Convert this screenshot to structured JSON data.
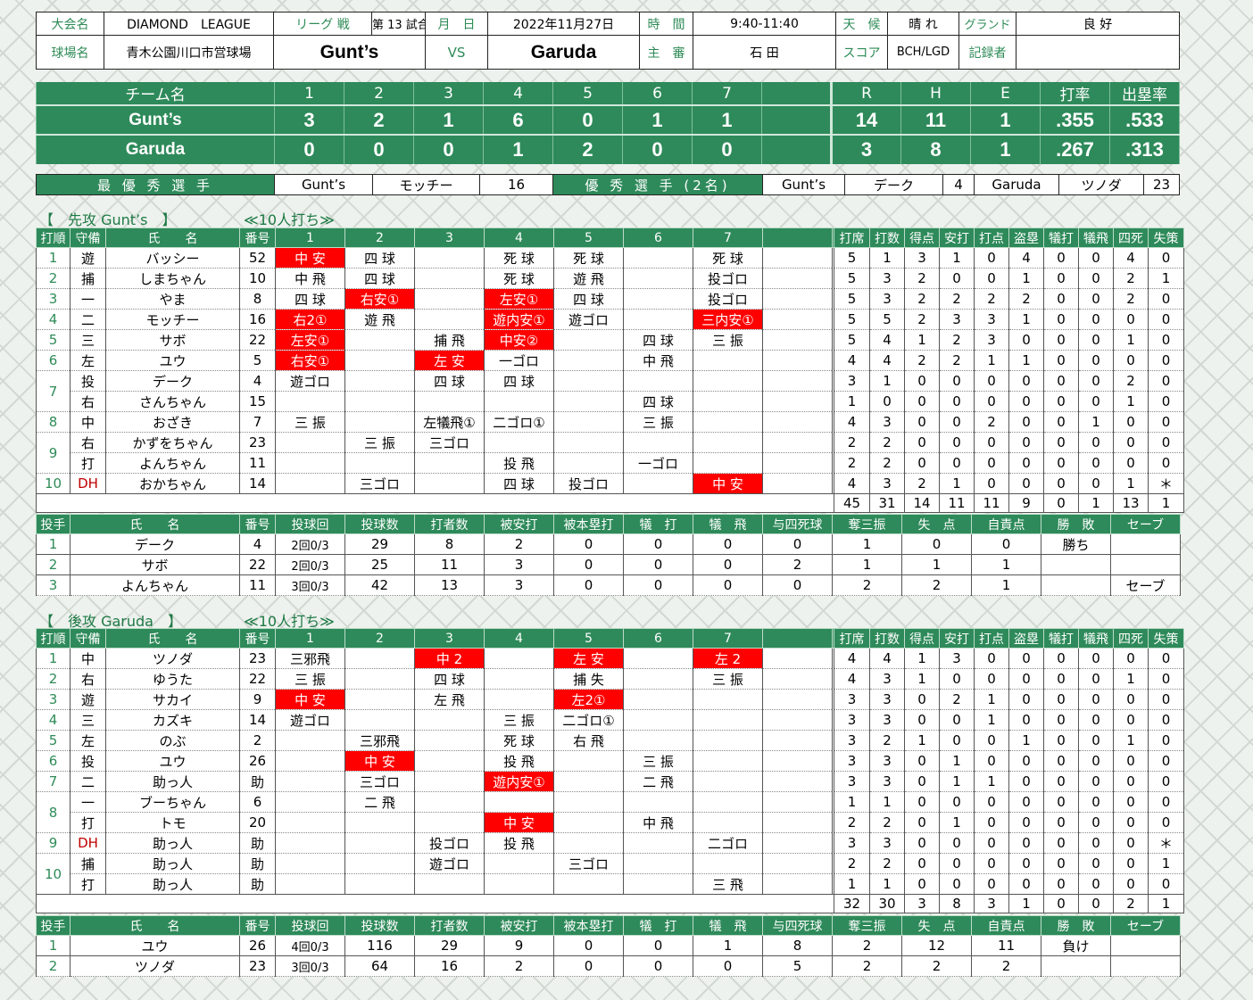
{
  "header": {
    "league_label": "大会名",
    "league_name": "DIAMOND　LEAGUE",
    "game_type": "リーグ 戦",
    "game_no": "第 13 試合",
    "date_label": "月　日",
    "date": "2022年11月27日",
    "time_label": "時　間",
    "time": "9:40-11:40",
    "weather_label": "天　候",
    "weather": "晴 れ",
    "ground_label": "グランド",
    "ground": "良 好",
    "venue_label": "球場名",
    "venue": "青木公園川口市営球場",
    "home_team": "Gunt’s",
    "vs": "VS",
    "away_team": "Garuda",
    "umpire_label": "主　審",
    "umpire": "石 田",
    "score_label": "スコア",
    "scorer": "BCH/LGD",
    "recorder_label": "記録者",
    "recorder": ""
  },
  "scoreboard": {
    "headers": [
      "チーム名",
      "1",
      "2",
      "3",
      "4",
      "5",
      "6",
      "7",
      "",
      "R",
      "H",
      "E",
      "打率",
      "出塁率"
    ],
    "rows": [
      [
        "Gunt’s",
        "3",
        "2",
        "1",
        "6",
        "0",
        "1",
        "1",
        "",
        "14",
        "11",
        "1",
        ".355",
        ".533"
      ],
      [
        "Garuda",
        "0",
        "0",
        "0",
        "1",
        "2",
        "0",
        "0",
        "",
        "3",
        "8",
        "1",
        ".267",
        ".313"
      ]
    ]
  },
  "awards": {
    "mvp_label": "最 優 秀 選 手",
    "mvp_team": "Gunt’s",
    "mvp_name": "モッチー",
    "mvp_no": "16",
    "excellent_label": "優 秀 選 手 (2名)",
    "ex1_team": "Gunt’s",
    "ex1_name": "デーク",
    "ex1_no": "4",
    "ex2_team": "Garuda",
    "ex2_name": "ツノダ",
    "ex2_no": "23"
  },
  "first": {
    "title": "【　先攻 Gunt’s　】",
    "note": "≪10人打ち≫",
    "headers": [
      "打順",
      "守備",
      "氏　　名",
      "番号",
      "1",
      "2",
      "3",
      "4",
      "5",
      "6",
      "7",
      "",
      "打席",
      "打数",
      "得点",
      "安打",
      "打点",
      "盗塁",
      "犠打",
      "犠飛",
      "四死",
      "失策"
    ],
    "rows": [
      {
        "order": "1",
        "pos": "遊",
        "name": "バッシー",
        "no": "52",
        "ab": [
          "中 安",
          "四 球",
          "",
          "死 球",
          "死 球",
          "",
          "死 球"
        ],
        "hits": [
          0
        ],
        "stats": [
          "5",
          "1",
          "3",
          "1",
          "0",
          "4",
          "0",
          "0",
          "4",
          "0"
        ]
      },
      {
        "order": "2",
        "pos": "捕",
        "name": "しまちゃん",
        "no": "10",
        "ab": [
          "中 飛",
          "四 球",
          "",
          "死 球",
          "遊 飛",
          "",
          "投ゴロ"
        ],
        "hits": [],
        "stats": [
          "5",
          "3",
          "2",
          "0",
          "0",
          "1",
          "0",
          "0",
          "2",
          "1"
        ]
      },
      {
        "order": "3",
        "pos": "一",
        "name": "やま",
        "no": "8",
        "ab": [
          "四 球",
          "右安①",
          "",
          "左安①",
          "四 球",
          "",
          "投ゴロ"
        ],
        "hits": [
          1,
          3
        ],
        "stats": [
          "5",
          "3",
          "2",
          "2",
          "2",
          "2",
          "0",
          "0",
          "2",
          "0"
        ]
      },
      {
        "order": "4",
        "pos": "二",
        "name": "モッチー",
        "no": "16",
        "ab": [
          "右2①",
          "遊 飛",
          "",
          "遊内安①",
          "遊ゴロ",
          "",
          "三内安①"
        ],
        "hits": [
          0,
          3,
          6
        ],
        "stats": [
          "5",
          "5",
          "2",
          "3",
          "3",
          "1",
          "0",
          "0",
          "0",
          "0"
        ]
      },
      {
        "order": "5",
        "pos": "三",
        "name": "サボ",
        "no": "22",
        "ab": [
          "左安①",
          "",
          "捕 飛",
          "中安②",
          "",
          "四 球",
          "三 振"
        ],
        "hits": [
          0,
          3
        ],
        "stats": [
          "5",
          "4",
          "1",
          "2",
          "3",
          "0",
          "0",
          "0",
          "1",
          "0"
        ]
      },
      {
        "order": "6",
        "pos": "左",
        "name": "ユウ",
        "no": "5",
        "ab": [
          "右安①",
          "",
          "左 安",
          "一ゴロ",
          "",
          "中 飛",
          ""
        ],
        "hits": [
          0,
          2
        ],
        "stats": [
          "4",
          "4",
          "2",
          "2",
          "1",
          "1",
          "0",
          "0",
          "0",
          "0"
        ]
      },
      {
        "order": "7",
        "pos": "投",
        "name": "デーク",
        "no": "4",
        "ab": [
          "遊ゴロ",
          "",
          "四 球",
          "四 球",
          "",
          "",
          ""
        ],
        "hits": [],
        "stats": [
          "3",
          "1",
          "0",
          "0",
          "0",
          "0",
          "0",
          "0",
          "2",
          "0"
        ],
        "span": 2
      },
      {
        "order": "",
        "pos": "右",
        "name": "さんちゃん",
        "no": "15",
        "ab": [
          "",
          "",
          "",
          "",
          "",
          "四 球",
          ""
        ],
        "hits": [],
        "stats": [
          "1",
          "0",
          "0",
          "0",
          "0",
          "0",
          "0",
          "0",
          "1",
          "0"
        ],
        "cont": true
      },
      {
        "order": "8",
        "pos": "中",
        "name": "おざき",
        "no": "7",
        "ab": [
          "三 振",
          "",
          "左犠飛①",
          "二ゴロ①",
          "",
          "三 振",
          ""
        ],
        "hits": [],
        "stats": [
          "4",
          "3",
          "0",
          "0",
          "2",
          "0",
          "0",
          "1",
          "0",
          "0"
        ]
      },
      {
        "order": "9",
        "pos": "右",
        "name": "かずをちゃん",
        "no": "23",
        "ab": [
          "",
          "三 振",
          "三ゴロ",
          "",
          "",
          "",
          ""
        ],
        "hits": [],
        "stats": [
          "2",
          "2",
          "0",
          "0",
          "0",
          "0",
          "0",
          "0",
          "0",
          "0"
        ],
        "span": 2
      },
      {
        "order": "",
        "pos": "打",
        "name": "よんちゃん",
        "no": "11",
        "ab": [
          "",
          "",
          "",
          "投 飛",
          "",
          "一ゴロ",
          ""
        ],
        "hits": [],
        "stats": [
          "2",
          "2",
          "0",
          "0",
          "0",
          "0",
          "0",
          "0",
          "0",
          "0"
        ],
        "cont": true
      },
      {
        "order": "10",
        "pos": "DH",
        "name": "おかちゃん",
        "no": "14",
        "ab": [
          "",
          "三ゴロ",
          "",
          "四 球",
          "投ゴロ",
          "",
          "中 安"
        ],
        "hits": [
          6
        ],
        "stats": [
          "4",
          "3",
          "2",
          "1",
          "0",
          "0",
          "0",
          "0",
          "1",
          "＊"
        ],
        "dh": true
      }
    ],
    "totals": [
      "45",
      "31",
      "14",
      "11",
      "11",
      "9",
      "0",
      "1",
      "13",
      "1"
    ],
    "pitch_headers": [
      "投手",
      "氏　　名",
      "番号",
      "投球回",
      "投球数",
      "打者数",
      "被安打",
      "被本塁打",
      "犠　打",
      "犠　飛",
      "与四死球",
      "奪三振",
      "失　点",
      "自責点",
      "勝　敗",
      "セーブ"
    ],
    "pitchers": [
      [
        "1",
        "デーク",
        "4",
        "2回0/3",
        "29",
        "8",
        "2",
        "0",
        "0",
        "0",
        "0",
        "1",
        "0",
        "0",
        "勝ち",
        ""
      ],
      [
        "2",
        "サボ",
        "22",
        "2回0/3",
        "25",
        "11",
        "3",
        "0",
        "0",
        "0",
        "2",
        "1",
        "1",
        "1",
        "",
        ""
      ],
      [
        "3",
        "よんちゃん",
        "11",
        "3回0/3",
        "42",
        "13",
        "3",
        "0",
        "0",
        "0",
        "0",
        "2",
        "2",
        "1",
        "",
        "セーブ"
      ]
    ]
  },
  "second": {
    "title": "【　後攻 Garuda　】",
    "note": "≪10人打ち≫",
    "rows": [
      {
        "order": "1",
        "pos": "中",
        "name": "ツノダ",
        "no": "23",
        "ab": [
          "三邪飛",
          "",
          "中 2",
          "",
          "左 安",
          "",
          "左 2"
        ],
        "hits": [
          2,
          4,
          6
        ],
        "stats": [
          "4",
          "4",
          "1",
          "3",
          "0",
          "0",
          "0",
          "0",
          "0",
          "0"
        ]
      },
      {
        "order": "2",
        "pos": "右",
        "name": "ゆうた",
        "no": "22",
        "ab": [
          "三 振",
          "",
          "四 球",
          "",
          "捕 失",
          "",
          "三 振"
        ],
        "hits": [],
        "stats": [
          "4",
          "3",
          "1",
          "0",
          "0",
          "0",
          "0",
          "0",
          "1",
          "0"
        ]
      },
      {
        "order": "3",
        "pos": "遊",
        "name": "サカイ",
        "no": "9",
        "ab": [
          "中 安",
          "",
          "左 飛",
          "",
          "左2①",
          "",
          ""
        ],
        "hits": [
          0,
          4
        ],
        "stats": [
          "3",
          "3",
          "0",
          "2",
          "1",
          "0",
          "0",
          "0",
          "0",
          "0"
        ]
      },
      {
        "order": "4",
        "pos": "三",
        "name": "カズキ",
        "no": "14",
        "ab": [
          "遊ゴロ",
          "",
          "",
          "三 振",
          "二ゴロ①",
          "",
          ""
        ],
        "hits": [],
        "stats": [
          "3",
          "3",
          "0",
          "0",
          "1",
          "0",
          "0",
          "0",
          "0",
          "0"
        ]
      },
      {
        "order": "5",
        "pos": "左",
        "name": "のぶ",
        "no": "2",
        "ab": [
          "",
          "三邪飛",
          "",
          "死 球",
          "右 飛",
          "",
          ""
        ],
        "hits": [],
        "stats": [
          "3",
          "2",
          "1",
          "0",
          "0",
          "1",
          "0",
          "0",
          "1",
          "0"
        ]
      },
      {
        "order": "6",
        "pos": "投",
        "name": "ユウ",
        "no": "26",
        "ab": [
          "",
          "中 安",
          "",
          "投 飛",
          "",
          "三 振",
          ""
        ],
        "hits": [
          1
        ],
        "stats": [
          "3",
          "3",
          "0",
          "1",
          "0",
          "0",
          "0",
          "0",
          "0",
          "0"
        ]
      },
      {
        "order": "7",
        "pos": "二",
        "name": "助っ人",
        "no": "助",
        "ab": [
          "",
          "三ゴロ",
          "",
          "遊内安①",
          "",
          "二 飛",
          ""
        ],
        "hits": [
          3
        ],
        "stats": [
          "3",
          "3",
          "0",
          "1",
          "1",
          "0",
          "0",
          "0",
          "0",
          "0"
        ]
      },
      {
        "order": "8",
        "pos": "一",
        "name": "ブーちゃん",
        "no": "6",
        "ab": [
          "",
          "二 飛",
          "",
          "",
          "",
          "",
          ""
        ],
        "hits": [],
        "stats": [
          "1",
          "1",
          "0",
          "0",
          "0",
          "0",
          "0",
          "0",
          "0",
          "0"
        ],
        "span": 2
      },
      {
        "order": "",
        "pos": "打",
        "name": "トモ",
        "no": "20",
        "ab": [
          "",
          "",
          "",
          "中 安",
          "",
          "中 飛",
          ""
        ],
        "hits": [
          3
        ],
        "stats": [
          "2",
          "2",
          "0",
          "1",
          "0",
          "0",
          "0",
          "0",
          "0",
          "0"
        ],
        "cont": true
      },
      {
        "order": "9",
        "pos": "DH",
        "name": "助っ人",
        "no": "助",
        "ab": [
          "",
          "",
          "投ゴロ",
          "投 飛",
          "",
          "",
          "二ゴロ"
        ],
        "hits": [],
        "stats": [
          "3",
          "3",
          "0",
          "0",
          "0",
          "0",
          "0",
          "0",
          "0",
          "＊"
        ],
        "dh": true
      },
      {
        "order": "10",
        "pos": "捕",
        "name": "助っ人",
        "no": "助",
        "ab": [
          "",
          "",
          "遊ゴロ",
          "",
          "三ゴロ",
          "",
          ""
        ],
        "hits": [],
        "stats": [
          "2",
          "2",
          "0",
          "0",
          "0",
          "0",
          "0",
          "0",
          "0",
          "1"
        ],
        "span": 2
      },
      {
        "order": "",
        "pos": "打",
        "name": "助っ人",
        "no": "助",
        "ab": [
          "",
          "",
          "",
          "",
          "",
          "",
          "三 飛"
        ],
        "hits": [],
        "stats": [
          "1",
          "1",
          "0",
          "0",
          "0",
          "0",
          "0",
          "0",
          "0",
          "0"
        ],
        "cont": true
      }
    ],
    "totals": [
      "32",
      "30",
      "3",
      "8",
      "3",
      "1",
      "0",
      "0",
      "2",
      "1"
    ],
    "pitchers": [
      [
        "1",
        "ユウ",
        "26",
        "4回0/3",
        "116",
        "29",
        "9",
        "0",
        "0",
        "1",
        "8",
        "2",
        "12",
        "11",
        "負け",
        ""
      ],
      [
        "2",
        "ツノダ",
        "23",
        "3回0/3",
        "64",
        "16",
        "2",
        "0",
        "0",
        "0",
        "5",
        "2",
        "2",
        "2",
        "",
        ""
      ]
    ]
  }
}
